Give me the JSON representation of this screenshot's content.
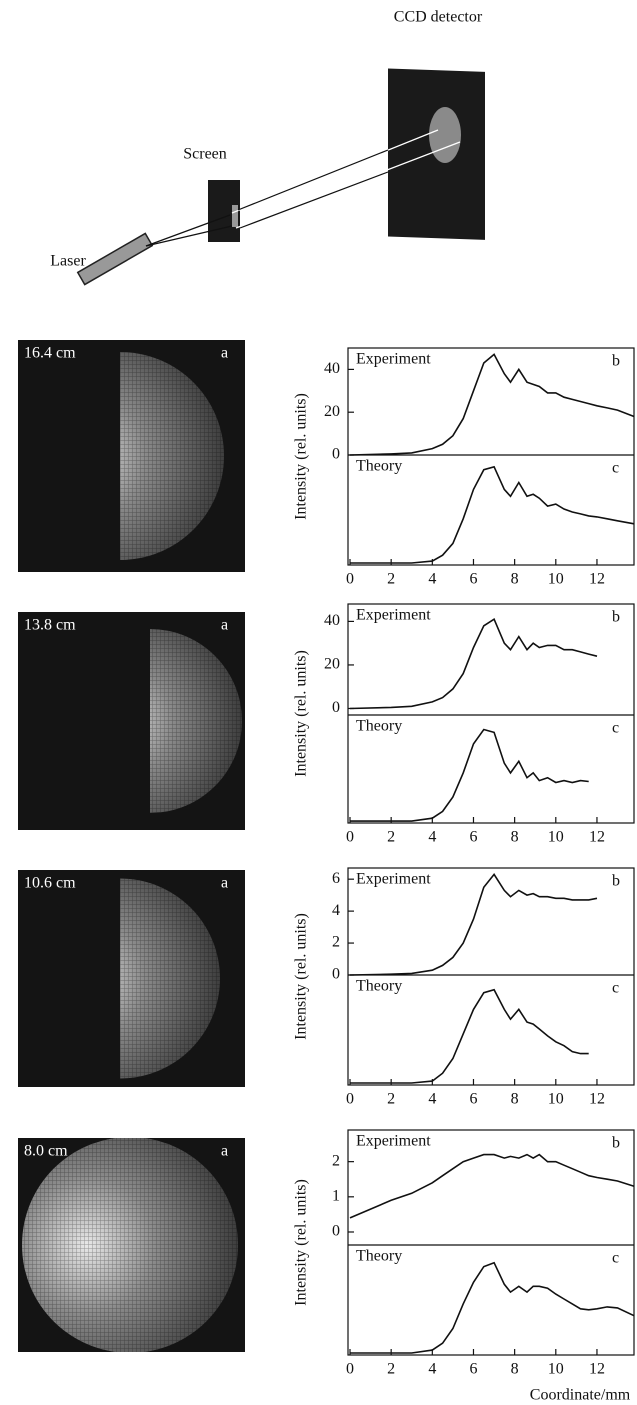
{
  "diagram": {
    "labels": [
      "CCD detector",
      "Screen",
      "Laser"
    ]
  },
  "panels": [
    {
      "distance": "16.4 cm",
      "image_label": "a"
    },
    {
      "distance": "13.8 cm",
      "image_label": "a"
    },
    {
      "distance": "10.6 cm",
      "image_label": "a"
    },
    {
      "distance": "8.0 cm",
      "image_label": "a"
    }
  ],
  "chart_data": [
    {
      "type": "line",
      "y_label": "Intensity (rel. units)",
      "x": [
        0,
        2,
        3,
        4,
        4.5,
        5,
        5.5,
        6,
        6.5,
        7,
        7.5,
        7.8,
        8.2,
        8.6,
        8.9,
        9.2,
        9.6,
        10,
        10.4,
        10.8,
        11.2,
        11.6,
        12,
        12.5,
        13,
        13.8
      ],
      "xlim": [
        0,
        13.8
      ],
      "xticks": [
        0,
        2,
        4,
        6,
        8,
        10,
        12
      ],
      "series": [
        {
          "name": "Experiment",
          "panel_label": "b",
          "color": "#111111",
          "ylim": [
            0,
            50
          ],
          "yticks": [
            0,
            20,
            40
          ],
          "values": [
            0,
            0.5,
            1,
            3,
            5,
            9,
            17,
            30,
            43,
            47,
            38,
            34,
            40,
            34,
            33,
            32,
            29,
            29,
            27,
            26,
            25,
            24,
            23,
            22,
            21,
            18
          ]
        },
        {
          "name": "Theory",
          "panel_label": "c",
          "color": "#111111",
          "ylim": [
            -0.02,
            1.1
          ],
          "values": [
            0,
            0,
            0,
            0.02,
            0.08,
            0.2,
            0.45,
            0.75,
            0.95,
            0.98,
            0.75,
            0.68,
            0.82,
            0.68,
            0.7,
            0.66,
            0.58,
            0.6,
            0.55,
            0.52,
            0.5,
            0.48,
            0.47,
            0.45,
            0.43,
            0.4
          ]
        }
      ]
    },
    {
      "type": "line",
      "y_label": "Intensity (rel. units)",
      "x": [
        0,
        2,
        3,
        4,
        4.5,
        5,
        5.5,
        6,
        6.5,
        7,
        7.5,
        7.8,
        8.2,
        8.6,
        8.9,
        9.2,
        9.6,
        10,
        10.4,
        10.8,
        11.2,
        11.6,
        12,
        12.5,
        13,
        13.8
      ],
      "xlim": [
        0,
        13.8
      ],
      "xticks": [
        0,
        2,
        4,
        6,
        8,
        10,
        12
      ],
      "series": [
        {
          "name": "Experiment",
          "panel_label": "b",
          "color": "#111111",
          "ylim": [
            -3,
            48
          ],
          "yticks": [
            0,
            20,
            40
          ],
          "values": [
            0,
            0.5,
            1,
            3,
            5,
            9,
            16,
            28,
            38,
            41,
            30,
            27,
            33,
            27,
            30,
            28,
            29,
            29,
            27,
            27,
            26,
            25,
            24,
            null,
            null,
            null
          ]
        },
        {
          "name": "Theory",
          "panel_label": "c",
          "color": "#111111",
          "ylim": [
            -0.02,
            1.1
          ],
          "values": [
            0,
            0,
            0,
            0.03,
            0.1,
            0.25,
            0.5,
            0.8,
            0.95,
            0.92,
            0.6,
            0.5,
            0.62,
            0.45,
            0.5,
            0.42,
            0.45,
            0.4,
            0.42,
            0.4,
            0.42,
            0.41,
            null,
            null,
            null,
            null
          ]
        }
      ]
    },
    {
      "type": "line",
      "y_label": "Intensity (rel. units)",
      "x": [
        0,
        2,
        3,
        4,
        4.5,
        5,
        5.5,
        6,
        6.5,
        7,
        7.5,
        7.8,
        8.2,
        8.6,
        8.9,
        9.2,
        9.6,
        10,
        10.4,
        10.8,
        11.2,
        11.6,
        12,
        12.5,
        13,
        13.8
      ],
      "xlim": [
        0,
        13.8
      ],
      "xticks": [
        0,
        2,
        4,
        6,
        8,
        10,
        12
      ],
      "series": [
        {
          "name": "Experiment",
          "panel_label": "b",
          "color": "#111111",
          "ylim": [
            0,
            6.7
          ],
          "yticks": [
            0,
            2,
            4,
            6
          ],
          "values": [
            0,
            0.05,
            0.1,
            0.3,
            0.6,
            1.1,
            2,
            3.5,
            5.5,
            6.3,
            5.3,
            4.9,
            5.3,
            5,
            5.1,
            4.9,
            4.9,
            4.8,
            4.8,
            4.7,
            4.7,
            4.7,
            4.8,
            null,
            null,
            null
          ]
        },
        {
          "name": "Theory",
          "panel_label": "c",
          "color": "#111111",
          "ylim": [
            -0.02,
            1.1
          ],
          "values": [
            0,
            0,
            0,
            0.02,
            0.1,
            0.25,
            0.5,
            0.75,
            0.92,
            0.95,
            0.75,
            0.65,
            0.75,
            0.62,
            0.6,
            0.55,
            0.48,
            0.42,
            0.38,
            0.32,
            0.3,
            0.3,
            null,
            null,
            null,
            null
          ]
        }
      ]
    },
    {
      "type": "line",
      "y_label": "Intensity (rel. units)",
      "x_label": "Coordinate/mm",
      "x": [
        0,
        2,
        3,
        4,
        4.5,
        5,
        5.5,
        6,
        6.5,
        7,
        7.5,
        7.8,
        8.2,
        8.6,
        8.9,
        9.2,
        9.6,
        10,
        10.4,
        10.8,
        11.2,
        11.6,
        12,
        12.5,
        13,
        13.8
      ],
      "xlim": [
        0,
        13.8
      ],
      "xticks": [
        0,
        2,
        4,
        6,
        8,
        10,
        12
      ],
      "series": [
        {
          "name": "Experiment",
          "panel_label": "b",
          "color": "#111111",
          "ylim": [
            -0.37,
            2.9
          ],
          "yticks": [
            0,
            1,
            2
          ],
          "values": [
            0.4,
            0.9,
            1.1,
            1.4,
            1.6,
            1.8,
            2,
            2.1,
            2.2,
            2.2,
            2.1,
            2.15,
            2.1,
            2.2,
            2.1,
            2.2,
            2,
            2,
            1.9,
            1.8,
            1.7,
            1.6,
            1.55,
            1.5,
            1.45,
            1.3
          ]
        },
        {
          "name": "Theory",
          "panel_label": "c",
          "color": "#111111",
          "ylim": [
            -0.02,
            1.1
          ],
          "values": [
            0,
            0,
            0,
            0.03,
            0.1,
            0.25,
            0.5,
            0.72,
            0.88,
            0.92,
            0.7,
            0.62,
            0.68,
            0.62,
            0.68,
            0.68,
            0.66,
            0.6,
            0.55,
            0.5,
            0.45,
            0.44,
            0.45,
            0.47,
            0.46,
            0.38
          ]
        }
      ]
    }
  ]
}
